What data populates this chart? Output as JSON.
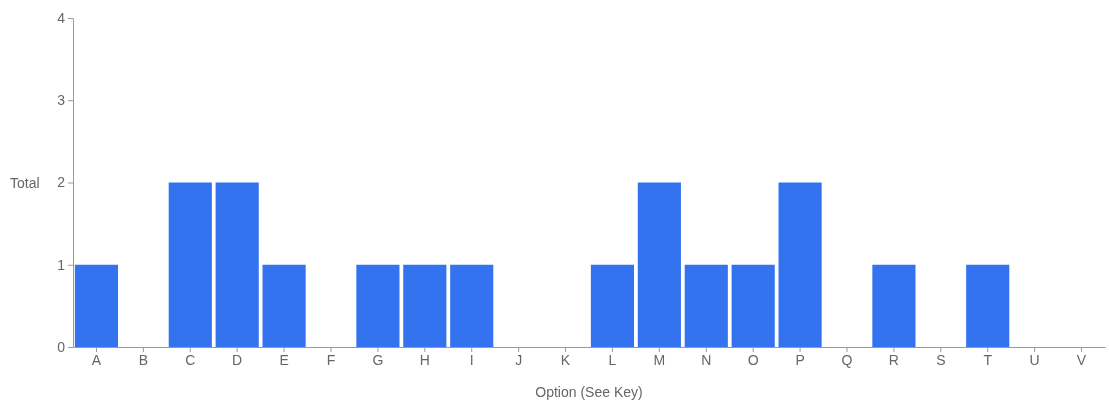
{
  "chart_data": {
    "type": "bar",
    "xlabel": "Option (See Key)",
    "ylabel": "Total",
    "categories": [
      "A",
      "B",
      "C",
      "D",
      "E",
      "F",
      "G",
      "H",
      "I",
      "J",
      "K",
      "L",
      "M",
      "N",
      "O",
      "P",
      "Q",
      "R",
      "S",
      "T",
      "U",
      "V"
    ],
    "values": [
      1,
      0,
      2,
      2,
      1,
      0,
      1,
      1,
      1,
      0,
      0,
      1,
      2,
      1,
      1,
      2,
      0,
      1,
      0,
      1,
      0,
      0
    ],
    "color": "#3473f0",
    "ylim": [
      0,
      4
    ],
    "yticks": [
      0,
      1,
      2,
      3,
      4
    ],
    "grid": false
  }
}
